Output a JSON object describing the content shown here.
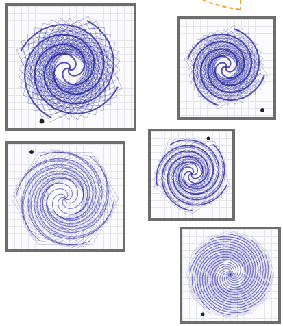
{
  "colors": {
    "frame_border": "#6d6d6d",
    "spiral_stroke": "#1f1f9e",
    "grid_line": "#e4e6ec",
    "connector": "#f0a024",
    "marker": "#222222"
  },
  "panels": [
    {
      "id": "spiral-panel-1",
      "sides": 4,
      "arms": 4,
      "density": "dense"
    },
    {
      "id": "spiral-panel-2",
      "sides": 4,
      "arms": 4,
      "density": "dense"
    },
    {
      "id": "spiral-panel-3",
      "sides": 6,
      "arms": 6,
      "density": "light"
    },
    {
      "id": "spiral-panel-4",
      "sides": 5,
      "arms": 5,
      "density": "medium"
    },
    {
      "id": "spiral-panel-5",
      "sides": 12,
      "arms": 12,
      "density": "light"
    }
  ]
}
